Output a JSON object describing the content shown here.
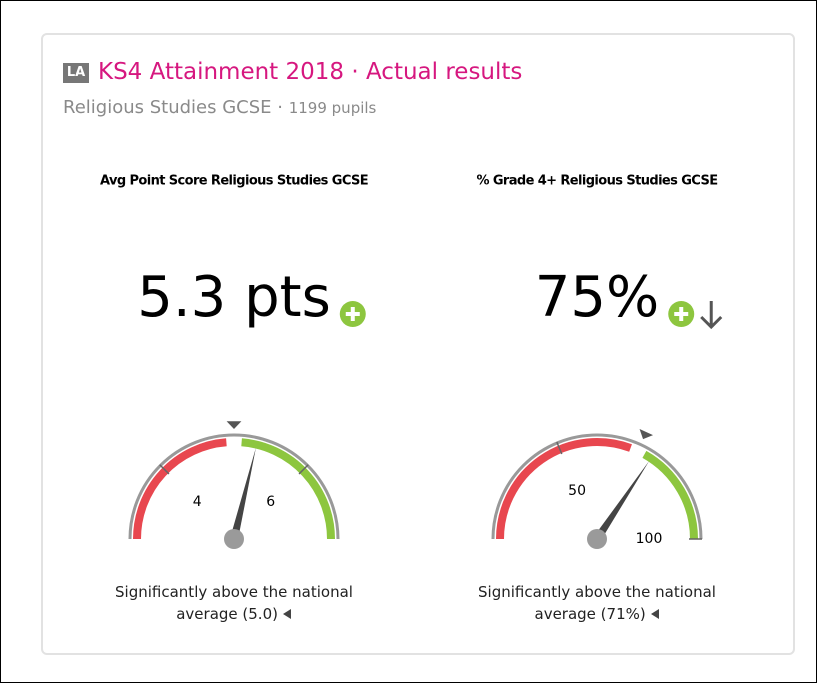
{
  "header": {
    "badge": "LA",
    "title": "KS4 Attainment 2018 · Actual results",
    "subtitle": "Religious Studies GCSE ·",
    "pupils": "1199 pupils"
  },
  "chart_data": [
    {
      "type": "gauge",
      "title": "Avg Point Score Religious Studies GCSE",
      "value": 5.3,
      "value_label": "5.3 pts",
      "reference": 5.0,
      "xlim": [
        3,
        7
      ],
      "xticks": [
        4,
        6
      ],
      "bands": [
        {
          "color": "#e8474f",
          "range": [
            3,
            4.9
          ]
        },
        {
          "color": "#8dc63f",
          "range": [
            5.1,
            7
          ]
        }
      ],
      "trend": null,
      "caption": "Significantly above the national average (5.0)"
    },
    {
      "type": "gauge",
      "title": "% Grade 4+ Religious Studies GCSE",
      "value": 75,
      "value_label": "75%",
      "reference": 71,
      "xlim": [
        20,
        100
      ],
      "xticks": [
        50,
        100
      ],
      "bands": [
        {
          "color": "#e8474f",
          "range": [
            20,
            69
          ]
        },
        {
          "color": "#8dc63f",
          "range": [
            73,
            100
          ]
        }
      ],
      "trend": "down",
      "caption": "Significantly above the national average (71%)"
    }
  ]
}
